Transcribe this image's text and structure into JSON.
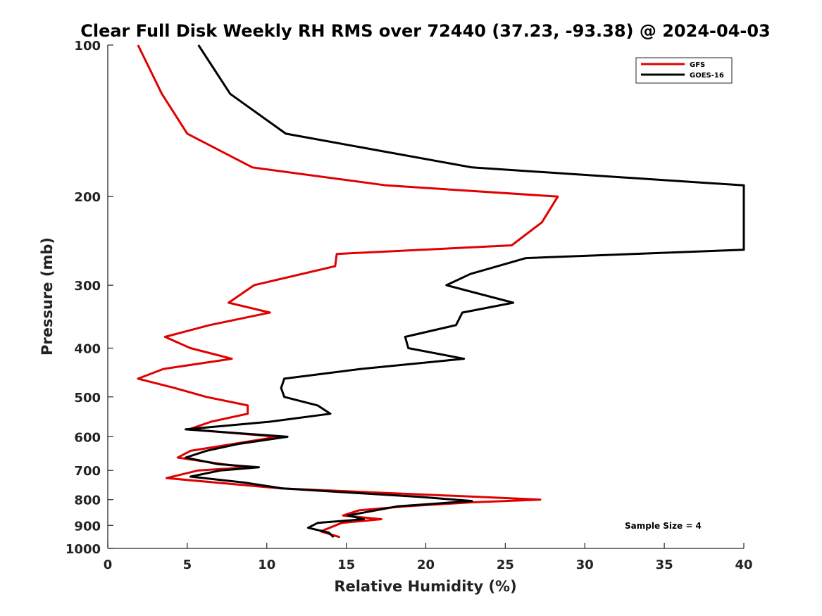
{
  "chart_data": {
    "type": "line",
    "title": "Clear Full Disk Weekly RH RMS over 72440 (37.23, -93.38) @ 2024-04-03",
    "xlabel": "Relative Humidity (%)",
    "ylabel": "Pressure (mb)",
    "xlim": [
      0,
      40
    ],
    "ylim": [
      100,
      1000
    ],
    "yscale": "log",
    "y_reversed": true,
    "grid": false,
    "legend_position": "top-right",
    "x_ticks": [
      "0",
      "5",
      "10",
      "15",
      "20",
      "25",
      "30",
      "35",
      "40"
    ],
    "y_ticks": [
      "100",
      "200",
      "300",
      "400",
      "500",
      "600",
      "700",
      "800",
      "900",
      "1000"
    ],
    "annotation": "Sample Size = 4",
    "series": [
      {
        "name": "GFS",
        "color": "#e00000",
        "points": [
          [
            1.9,
            100
          ],
          [
            3.4,
            125
          ],
          [
            5.0,
            150
          ],
          [
            9.1,
            175
          ],
          [
            17.5,
            190
          ],
          [
            28.3,
            200
          ],
          [
            27.3,
            225
          ],
          [
            25.4,
            250
          ],
          [
            14.4,
            260
          ],
          [
            14.3,
            275
          ],
          [
            9.2,
            300
          ],
          [
            7.6,
            325
          ],
          [
            10.2,
            340
          ],
          [
            6.4,
            360
          ],
          [
            3.6,
            380
          ],
          [
            5.2,
            400
          ],
          [
            7.8,
            420
          ],
          [
            3.5,
            440
          ],
          [
            1.9,
            460
          ],
          [
            4.2,
            480
          ],
          [
            6.2,
            500
          ],
          [
            8.8,
            520
          ],
          [
            8.8,
            540
          ],
          [
            6.5,
            560
          ],
          [
            5.1,
            580
          ],
          [
            10.7,
            600
          ],
          [
            7.9,
            620
          ],
          [
            5.2,
            640
          ],
          [
            4.4,
            660
          ],
          [
            7.2,
            680
          ],
          [
            8.9,
            690
          ],
          [
            5.7,
            700
          ],
          [
            3.7,
            725
          ],
          [
            10.9,
            760
          ],
          [
            23.3,
            790
          ],
          [
            27.2,
            800
          ],
          [
            22.8,
            810
          ],
          [
            18.7,
            825
          ],
          [
            15.8,
            840
          ],
          [
            14.8,
            860
          ],
          [
            17.2,
            875
          ],
          [
            14.7,
            890
          ],
          [
            13.4,
            925
          ],
          [
            14.6,
            950
          ]
        ]
      },
      {
        "name": "GOES-16",
        "color": "#000000",
        "points": [
          [
            5.7,
            100
          ],
          [
            7.7,
            125
          ],
          [
            11.2,
            150
          ],
          [
            22.9,
            175
          ],
          [
            40.0,
            190
          ],
          [
            40.0,
            255
          ],
          [
            26.3,
            265
          ],
          [
            22.8,
            285
          ],
          [
            21.3,
            300
          ],
          [
            25.5,
            325
          ],
          [
            22.3,
            340
          ],
          [
            21.9,
            360
          ],
          [
            18.7,
            380
          ],
          [
            18.9,
            400
          ],
          [
            22.4,
            420
          ],
          [
            15.9,
            440
          ],
          [
            11.1,
            460
          ],
          [
            10.9,
            480
          ],
          [
            11.1,
            500
          ],
          [
            13.2,
            520
          ],
          [
            14.0,
            540
          ],
          [
            10.2,
            560
          ],
          [
            4.9,
            580
          ],
          [
            11.3,
            600
          ],
          [
            8.2,
            620
          ],
          [
            6.2,
            640
          ],
          [
            4.9,
            660
          ],
          [
            6.9,
            680
          ],
          [
            9.5,
            690
          ],
          [
            7.1,
            700
          ],
          [
            5.2,
            720
          ],
          [
            8.6,
            740
          ],
          [
            11.0,
            760
          ],
          [
            19.6,
            790
          ],
          [
            22.9,
            805
          ],
          [
            18.2,
            825
          ],
          [
            15.1,
            860
          ],
          [
            16.1,
            875
          ],
          [
            13.2,
            890
          ],
          [
            12.6,
            910
          ],
          [
            13.9,
            930
          ],
          [
            14.2,
            950
          ]
        ]
      }
    ]
  }
}
